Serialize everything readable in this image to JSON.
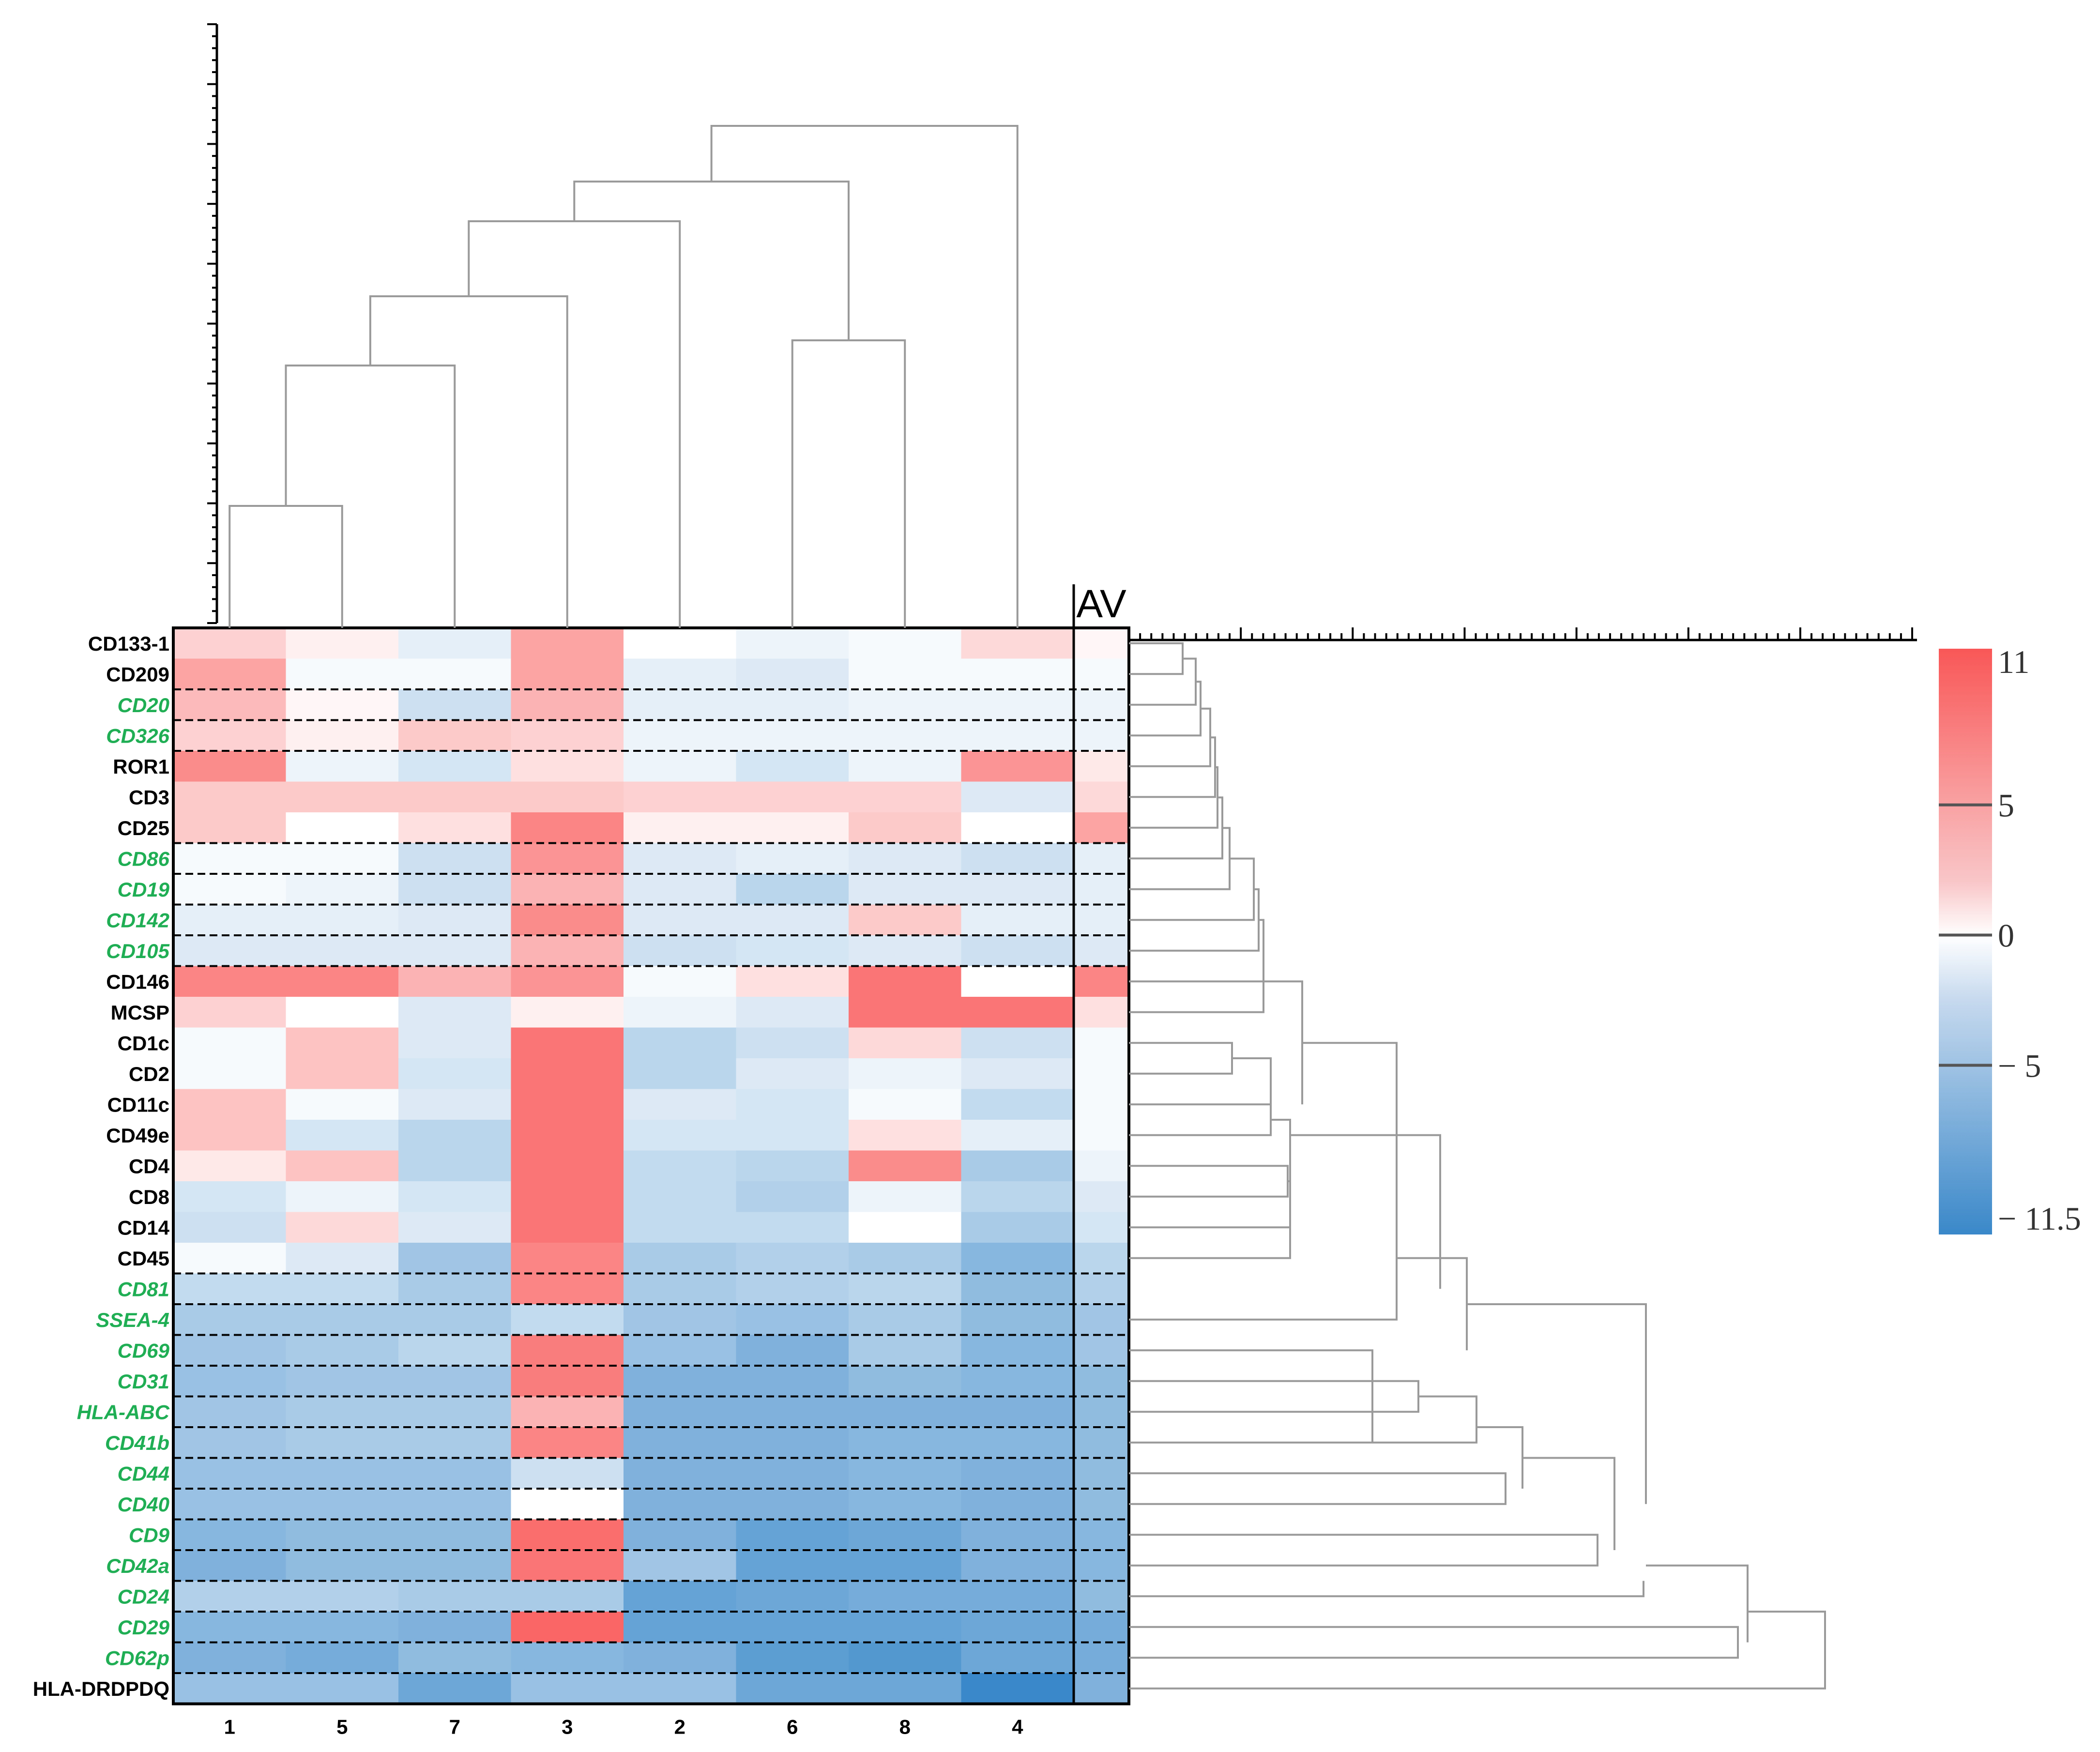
{
  "chart_data": {
    "type": "heatmap",
    "title": "",
    "xlabel": "",
    "ylabel": "",
    "columns": [
      "1",
      "5",
      "7",
      "3",
      "2",
      "6",
      "8",
      "4"
    ],
    "average_column_label": "AV",
    "rows": [
      {
        "label": "CD133-1",
        "highlight": false,
        "values": [
          3,
          1,
          -1.5,
          6,
          0,
          -1,
          -0.5,
          2.5
        ],
        "average": 0.5
      },
      {
        "label": "CD209",
        "highlight": false,
        "values": [
          6,
          -0.5,
          -0.5,
          6,
          -1.5,
          -2,
          -0.5,
          -0.5
        ],
        "average": -0.5
      },
      {
        "label": "CD20",
        "highlight": true,
        "values": [
          4.5,
          0.5,
          -3,
          5,
          -1.5,
          -1.5,
          -1,
          -1
        ],
        "average": -1
      },
      {
        "label": "CD326",
        "highlight": true,
        "values": [
          3,
          1,
          3.5,
          3,
          -1,
          -1,
          -1,
          -1
        ],
        "average": -1
      },
      {
        "label": "ROR1",
        "highlight": false,
        "values": [
          7.5,
          -1,
          -2.5,
          2,
          -1,
          -2.5,
          -1,
          7
        ],
        "average": 1.5
      },
      {
        "label": "CD3",
        "highlight": false,
        "values": [
          3.5,
          3.5,
          3.5,
          3.5,
          3,
          3,
          3,
          -2
        ],
        "average": 2.5
      },
      {
        "label": "CD25",
        "highlight": false,
        "values": [
          3.5,
          0,
          2,
          8,
          1,
          1,
          3.5,
          0
        ],
        "average": 6
      },
      {
        "label": "CD86",
        "highlight": true,
        "values": [
          -0.5,
          -0.5,
          -3,
          7,
          -2,
          -1.5,
          -2,
          -3
        ],
        "average": -1.5
      },
      {
        "label": "CD19",
        "highlight": true,
        "values": [
          -0.5,
          -1,
          -3,
          5,
          -2,
          -4,
          -2,
          -2
        ],
        "average": -1.5
      },
      {
        "label": "CD142",
        "highlight": true,
        "values": [
          -1.5,
          -1.5,
          -2,
          7.5,
          -2,
          -2,
          3.5,
          -1.5
        ],
        "average": -1.5
      },
      {
        "label": "CD105",
        "highlight": true,
        "values": [
          -2,
          -2,
          -2,
          5,
          -3,
          -2.5,
          -2,
          -3
        ],
        "average": -2
      },
      {
        "label": "CD146",
        "highlight": false,
        "values": [
          8,
          8,
          5,
          7,
          -0.5,
          2,
          9,
          0
        ],
        "average": 8
      },
      {
        "label": "MCSP",
        "highlight": false,
        "values": [
          3,
          0,
          -2,
          1,
          -1,
          -2,
          9,
          9
        ],
        "average": 2
      },
      {
        "label": "CD1c",
        "highlight": false,
        "values": [
          -0.5,
          4,
          -2,
          9,
          -4,
          -3,
          2.5,
          -3
        ],
        "average": -0.5
      },
      {
        "label": "CD2",
        "highlight": false,
        "values": [
          -0.5,
          4,
          -2.5,
          9,
          -4,
          -2,
          -1,
          -2
        ],
        "average": -0.5
      },
      {
        "label": "CD11c",
        "highlight": false,
        "values": [
          4,
          -0.5,
          -2,
          9,
          -2,
          -2.5,
          -0.5,
          -3.5
        ],
        "average": -0.5
      },
      {
        "label": "CD49e",
        "highlight": false,
        "values": [
          4,
          -2.5,
          -4,
          9,
          -2.5,
          -2.5,
          2,
          -1.5
        ],
        "average": -0.5
      },
      {
        "label": "CD4",
        "highlight": false,
        "values": [
          1.5,
          4,
          -4,
          9,
          -3.5,
          -4,
          7.5,
          -5
        ],
        "average": -1
      },
      {
        "label": "CD8",
        "highlight": false,
        "values": [
          -2.5,
          -1,
          -2.5,
          9,
          -3.5,
          -4.5,
          -1,
          -4
        ],
        "average": -2
      },
      {
        "label": "CD14",
        "highlight": false,
        "values": [
          -3,
          2.5,
          -2,
          9,
          -3.5,
          -3.5,
          0,
          -5
        ],
        "average": -2.5
      },
      {
        "label": "CD45",
        "highlight": false,
        "values": [
          -0.5,
          -2,
          -5.5,
          8,
          -5,
          -4.5,
          -5,
          -7
        ],
        "average": -4
      },
      {
        "label": "CD81",
        "highlight": true,
        "values": [
          -3.5,
          -3.5,
          -5,
          8,
          -5,
          -4.5,
          -4,
          -6.5
        ],
        "average": -4.5
      },
      {
        "label": "SSEA-4",
        "highlight": true,
        "values": [
          -5,
          -5,
          -5,
          -3.5,
          -5.5,
          -6,
          -5,
          -6.5
        ],
        "average": -5.5
      },
      {
        "label": "CD69",
        "highlight": true,
        "values": [
          -5.5,
          -5,
          -4,
          8.5,
          -6,
          -7.5,
          -5,
          -7
        ],
        "average": -5.5
      },
      {
        "label": "CD31",
        "highlight": true,
        "values": [
          -6,
          -5.5,
          -5.5,
          8.5,
          -7.5,
          -7.5,
          -6.5,
          -7
        ],
        "average": -6.5
      },
      {
        "label": "HLA-ABC",
        "highlight": true,
        "values": [
          -5.5,
          -5,
          -5,
          5,
          -7.5,
          -7.5,
          -7.5,
          -7.5
        ],
        "average": -6.5
      },
      {
        "label": "CD41b",
        "highlight": true,
        "values": [
          -5.5,
          -5,
          -5,
          8,
          -7.5,
          -7.5,
          -7,
          -7
        ],
        "average": -6.5
      },
      {
        "label": "CD44",
        "highlight": true,
        "values": [
          -6,
          -6,
          -6,
          -3,
          -7.5,
          -7.5,
          -7,
          -7.5
        ],
        "average": -6.5
      },
      {
        "label": "CD40",
        "highlight": true,
        "values": [
          -6,
          -6,
          -6,
          0,
          -7.5,
          -7.5,
          -7,
          -7.5
        ],
        "average": -6.5
      },
      {
        "label": "CD9",
        "highlight": true,
        "values": [
          -7,
          -6.5,
          -6.5,
          9.5,
          -7.5,
          -9,
          -8.5,
          -7.5
        ],
        "average": -7
      },
      {
        "label": "CD42a",
        "highlight": true,
        "values": [
          -7.5,
          -6.5,
          -6.5,
          9,
          -5.5,
          -9,
          -9,
          -7.5
        ],
        "average": -7
      },
      {
        "label": "CD24",
        "highlight": true,
        "values": [
          -4.5,
          -4.5,
          -5,
          -5,
          -9,
          -8.5,
          -8,
          -8
        ],
        "average": -6.5
      },
      {
        "label": "CD29",
        "highlight": true,
        "values": [
          -7,
          -7,
          -7.5,
          10,
          -9,
          -9,
          -9,
          -8.5
        ],
        "average": -8
      },
      {
        "label": "CD62p",
        "highlight": true,
        "values": [
          -7.5,
          -8,
          -6.5,
          -7,
          -7.5,
          -9.5,
          -10,
          -8.5
        ],
        "average": -8
      },
      {
        "label": "HLA-DRDPDQ",
        "highlight": false,
        "values": [
          -6,
          -6,
          -8.5,
          -6,
          -6,
          -8.5,
          -8.5,
          -11.5
        ],
        "average": -7.5
      }
    ],
    "color_scale": {
      "min": -11.5,
      "max": 11,
      "ticks": [
        11,
        5,
        0,
        -5,
        -11.5
      ],
      "tick_labels": [
        "11",
        "5",
        "0",
        "− 5",
        "− 11.5"
      ],
      "colors": {
        "max": "#f95757",
        "mid": "#ffffff",
        "min": "#3a88c9"
      }
    },
    "highlight_color": "#1fae54",
    "dendrogram_color": "#9a9a9a"
  }
}
